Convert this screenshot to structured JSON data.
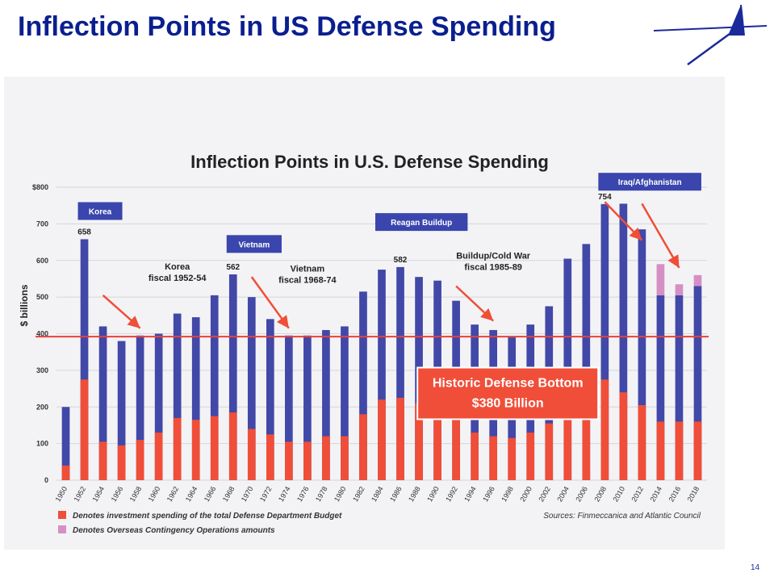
{
  "slide": {
    "title": "Inflection Points in US Defense Spending",
    "page_number": "14"
  },
  "colors": {
    "base": "#4148a8",
    "investment": "#f04e38",
    "oco": "#d68fc4",
    "reference_line": "#e8403a",
    "label_box": "#3a45ad"
  },
  "chart_data": {
    "type": "bar",
    "title": "Inflection Points in U.S. Defense Spending",
    "ylabel": "$ billions",
    "ylim": [
      0,
      800
    ],
    "yticks": [
      0,
      100,
      200,
      300,
      400,
      500,
      600,
      700,
      800
    ],
    "ytick_labels": [
      "0",
      "100",
      "200",
      "300",
      "400",
      "500",
      "600",
      "700",
      "$800"
    ],
    "categories": [
      "1950",
      "1952",
      "1954",
      "1956",
      "1958",
      "1960",
      "1962",
      "1964",
      "1966",
      "1968",
      "1970",
      "1972",
      "1974",
      "1976",
      "1978",
      "1980",
      "1982",
      "1984",
      "1986",
      "1988",
      "1990",
      "1992",
      "1994",
      "1996",
      "1998",
      "2000",
      "2002",
      "2004",
      "2006",
      "2008",
      "2010",
      "2012",
      "2014",
      "2016",
      "2018"
    ],
    "series": [
      {
        "name": "Total Defense Department Budget",
        "values": [
          200,
          658,
          420,
          380,
          395,
          400,
          455,
          445,
          505,
          562,
          500,
          440,
          395,
          395,
          410,
          420,
          515,
          575,
          582,
          555,
          545,
          490,
          425,
          410,
          390,
          425,
          475,
          605,
          645,
          754,
          755,
          685,
          505,
          505,
          530
        ]
      },
      {
        "name": "Investment spending",
        "values": [
          40,
          275,
          105,
          95,
          110,
          130,
          170,
          165,
          175,
          185,
          140,
          125,
          105,
          105,
          120,
          120,
          180,
          220,
          225,
          210,
          205,
          190,
          130,
          120,
          115,
          130,
          155,
          200,
          210,
          275,
          240,
          205,
          160,
          160,
          160
        ]
      },
      {
        "name": "Overseas Contingency Operations",
        "values": [
          0,
          0,
          0,
          0,
          0,
          0,
          0,
          0,
          0,
          0,
          0,
          0,
          0,
          0,
          0,
          0,
          0,
          0,
          0,
          0,
          0,
          0,
          0,
          0,
          0,
          0,
          0,
          0,
          0,
          0,
          0,
          0,
          85,
          30,
          30
        ]
      }
    ],
    "reference_line": {
      "value": 392
    },
    "data_labels": [
      {
        "category": "1952",
        "text": "658"
      },
      {
        "category": "1968",
        "text": "562"
      },
      {
        "category": "1986",
        "text": "582"
      },
      {
        "category": "2008",
        "text": "754"
      }
    ],
    "period_labels": [
      {
        "text": "Korea",
        "category": "1952",
        "value": 735
      },
      {
        "text": "Vietnam",
        "category": "1968",
        "value": 645
      },
      {
        "text": "Reagan Buildup",
        "category": "1984",
        "value": 705
      },
      {
        "text": "Iraq/Afghanistan",
        "category": "2008",
        "value": 815
      }
    ],
    "annotations": [
      {
        "lines": [
          "Korea",
          "fiscal 1952-54"
        ],
        "category": "1962",
        "value": 575
      },
      {
        "lines": [
          "Vietnam",
          "fiscal 1968-74"
        ],
        "category": "1976",
        "value": 570
      },
      {
        "lines": [
          "Buildup/Cold War",
          "fiscal 1985-89"
        ],
        "category": "1996",
        "value": 605
      }
    ],
    "arrows": [
      {
        "from_category": "1954",
        "from_value": 505,
        "to_category": "1958",
        "to_value": 415
      },
      {
        "from_category": "1970",
        "from_value": 555,
        "to_category": "1974",
        "to_value": 415
      },
      {
        "from_category": "1992",
        "from_value": 530,
        "to_category": "1996",
        "to_value": 435
      },
      {
        "from_category": "2008",
        "from_value": 760,
        "to_category": "2012",
        "to_value": 655
      },
      {
        "from_category": "2012",
        "from_value": 755,
        "to_category": "2016",
        "to_value": 580
      }
    ],
    "callout": {
      "lines": [
        "Historic Defense Bottom",
        "$380 Billion"
      ],
      "category": "1998",
      "value": 270
    },
    "legend": [
      {
        "text": "Denotes investment spending of the total Defense Department Budget",
        "color_key": "investment"
      },
      {
        "text": "Denotes Overseas Contingency Operations amounts",
        "color_key": "oco"
      }
    ],
    "source": "Sources: Finmeccanica and Atlantic Council"
  }
}
